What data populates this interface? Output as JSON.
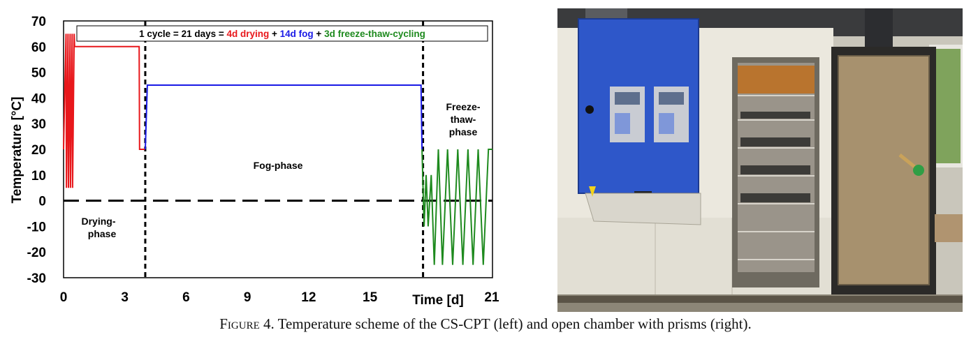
{
  "chart_data": {
    "type": "line",
    "ylabel": "Temperature [°C]",
    "xlabel": "Time [d]",
    "xlim": [
      0,
      21
    ],
    "ylim": [
      -30,
      70
    ],
    "xticks": [
      "0",
      "3",
      "6",
      "9",
      "12",
      "15",
      "21"
    ],
    "yticks": [
      "70",
      "60",
      "50",
      "40",
      "30",
      "20",
      "10",
      "0",
      "-10",
      "-20",
      "-30"
    ],
    "ytick_values": [
      70,
      60,
      50,
      40,
      30,
      20,
      10,
      0,
      -10,
      -20,
      -30
    ],
    "xtick_values": [
      0,
      3,
      6,
      9,
      12,
      15,
      21
    ],
    "cycle_box": {
      "prefix": "1 cycle = 21 days = ",
      "drying": "4d drying",
      "plus1": " + ",
      "fog": "14d fog",
      "plus2": " + ",
      "freeze": "3d freeze-thaw-cycling"
    },
    "annotations": {
      "drying_line1": "Drying-",
      "drying_line2": "phase",
      "fog": "Fog-phase",
      "freeze_line1": "Freeze-",
      "freeze_line2": "thaw-",
      "freeze_line3": "phase"
    },
    "phase_boundaries": [
      4,
      17.6
    ],
    "colors": {
      "drying": "#e8171b",
      "fog": "#1a1ae6",
      "freeze": "#1e8a1e"
    },
    "series": [
      {
        "phase": "drying",
        "x": [
          0,
          0.12,
          0.14,
          0.22,
          0.24,
          0.32,
          0.34,
          0.42,
          0.44,
          0.52,
          0.54,
          3.7,
          3.72,
          3.98
        ],
        "y": [
          20,
          65,
          5,
          65,
          5,
          65,
          5,
          65,
          5,
          65,
          60,
          60,
          20,
          20
        ]
      },
      {
        "phase": "fog",
        "x": [
          4.0,
          4.1,
          17.5,
          17.55
        ],
        "y": [
          20,
          45,
          45,
          20
        ]
      },
      {
        "phase": "freeze",
        "x": [
          17.55,
          17.65,
          17.75,
          17.85,
          18.0,
          18.15,
          18.35,
          18.55,
          18.8,
          19.05,
          19.3,
          19.55,
          19.8,
          20.05,
          20.3,
          20.55,
          20.8,
          21.0
        ],
        "y": [
          20,
          -10,
          10,
          -10,
          10,
          -25,
          20,
          -25,
          20,
          -25,
          20,
          -25,
          20,
          -25,
          20,
          -25,
          20,
          20
        ]
      }
    ]
  },
  "caption": {
    "figure": "Figure 4.",
    "text": " Temperature scheme of the CS-CPT (left) and open chamber with prisms (right)."
  }
}
